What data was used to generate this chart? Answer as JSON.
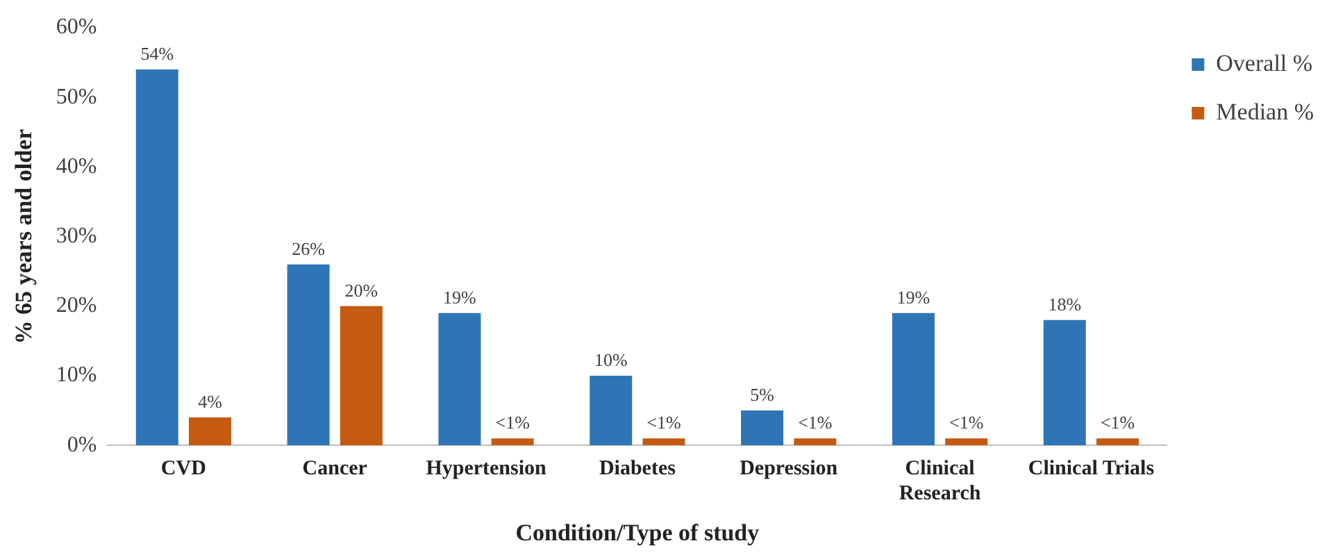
{
  "chart_data": {
    "type": "bar",
    "xlabel": "Condition/Type of study",
    "ylabel": "% 65 years and older",
    "categories": [
      "CVD",
      "Cancer",
      "Hypertension",
      "Diabetes",
      "Depression",
      "Clinical Research",
      "Clinical Trials"
    ],
    "series": [
      {
        "name": "Overall %",
        "color": "#2e75b6",
        "values": [
          54,
          26,
          19,
          10,
          5,
          19,
          18
        ],
        "value_labels": [
          "54%",
          "26%",
          "19%",
          "10%",
          "5%",
          "19%",
          "18%"
        ]
      },
      {
        "name": "Median %",
        "color": "#c55a11",
        "values": [
          4,
          20,
          1,
          1,
          1,
          1,
          1
        ],
        "value_labels": [
          "4%",
          "20%",
          "<1%",
          "<1%",
          "<1%",
          "<1%",
          "<1%"
        ]
      }
    ],
    "ylim": [
      0,
      60
    ],
    "yticks": [
      {
        "value": 0,
        "label": "0%"
      },
      {
        "value": 10,
        "label": "10%"
      },
      {
        "value": 20,
        "label": "20%"
      },
      {
        "value": 30,
        "label": "30%"
      },
      {
        "value": 40,
        "label": "40%"
      },
      {
        "value": 50,
        "label": "50%"
      },
      {
        "value": 60,
        "label": "60%"
      }
    ],
    "grid": false,
    "legend": "top right"
  }
}
